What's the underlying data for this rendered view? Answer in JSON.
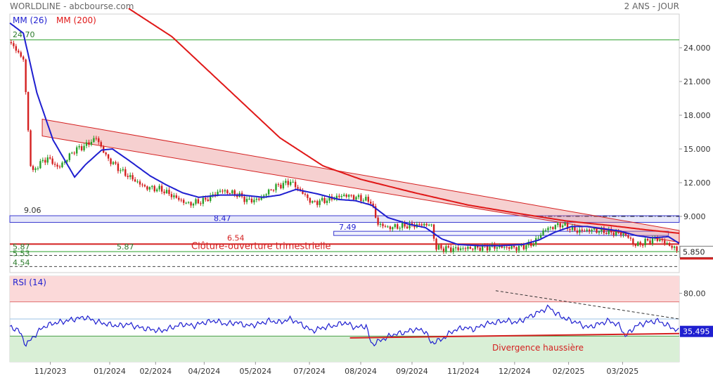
{
  "header": {
    "left": "WORLDLINE - abcbourse.com",
    "right": "2 ANS - JOUR"
  },
  "colors": {
    "mm26": "#1f1fd0",
    "mm200": "#e01818",
    "up": "#2aa02a",
    "down": "#d42020",
    "rsi": "#1f1fd0",
    "overbought_zone": "#fbd9d9",
    "oversold_zone": "#d9efd6",
    "price_badge": "#7a7a7a",
    "rsi_badge": "#1f1fd0"
  },
  "chart_data": [
    {
      "type": "line",
      "panel": "price",
      "legend": [
        {
          "name": "MM (26)"
        },
        {
          "name": "MM (200)"
        }
      ],
      "ylim": [
        4.0,
        27.0
      ],
      "yticks": [
        "24.000",
        "21.000",
        "18.000",
        "15.000",
        "12.000",
        "9.000",
        "6.000"
      ],
      "xticks": [
        "11/2023",
        "01/2024",
        "02/2024",
        "04/2024",
        "05/2024",
        "07/2024",
        "08/2024",
        "09/2024",
        "11/2024",
        "12/2024",
        "02/2025",
        "03/2025"
      ],
      "current_price_label": "5.850",
      "current_price": 5.85,
      "levels": [
        {
          "label": "24.70",
          "value": 24.7
        },
        {
          "label": "9.06",
          "value": 9.06
        },
        {
          "label": "8.47",
          "value": 8.47
        },
        {
          "label": "7.49",
          "value": 7.49
        },
        {
          "label": "6.54",
          "value": 6.54
        },
        {
          "label": "5.87",
          "value": 5.87
        },
        {
          "label": "5.87",
          "value": 5.87
        },
        {
          "label": "5.53",
          "value": 5.53
        },
        {
          "label": "4.54",
          "value": 4.54
        }
      ],
      "annotation": "Clôture-ouverture trimestrielle",
      "series": [
        {
          "name": "Cours",
          "points": [
            [
              0,
              24.5
            ],
            [
              5,
              23.0
            ],
            [
              8,
              12.6
            ],
            [
              10,
              13.5
            ],
            [
              14,
              14.2
            ],
            [
              18,
              13.3
            ],
            [
              24,
              14.9
            ],
            [
              28,
              15.3
            ],
            [
              32,
              16.0
            ],
            [
              36,
              14.2
            ],
            [
              42,
              12.9
            ],
            [
              50,
              11.6
            ],
            [
              56,
              11.4
            ],
            [
              62,
              10.6
            ],
            [
              66,
              10.1
            ],
            [
              72,
              10.4
            ],
            [
              78,
              11.3
            ],
            [
              84,
              11.0
            ],
            [
              88,
              10.4
            ],
            [
              92,
              10.5
            ],
            [
              98,
              11.6
            ],
            [
              104,
              12.1
            ],
            [
              108,
              11.2
            ],
            [
              112,
              10.2
            ],
            [
              118,
              10.5
            ],
            [
              124,
              10.9
            ],
            [
              130,
              10.6
            ],
            [
              134,
              10.3
            ],
            [
              136,
              8.4
            ],
            [
              140,
              8.0
            ],
            [
              148,
              8.2
            ],
            [
              156,
              8.3
            ],
            [
              158,
              6.2
            ],
            [
              164,
              6.1
            ],
            [
              172,
              6.2
            ],
            [
              180,
              6.3
            ],
            [
              188,
              6.2
            ],
            [
              194,
              6.6
            ],
            [
              198,
              7.8
            ],
            [
              204,
              8.3
            ],
            [
              210,
              7.7
            ],
            [
              216,
              7.8
            ],
            [
              222,
              7.6
            ],
            [
              228,
              7.4
            ],
            [
              232,
              6.4
            ],
            [
              236,
              6.8
            ],
            [
              240,
              7.0
            ],
            [
              244,
              6.5
            ],
            [
              248,
              5.85
            ]
          ]
        },
        {
          "name": "MM (26)",
          "points": [
            [
              0,
              26.2
            ],
            [
              5,
              25.3
            ],
            [
              10,
              20.0
            ],
            [
              16,
              15.8
            ],
            [
              24,
              12.5
            ],
            [
              28,
              13.6
            ],
            [
              34,
              14.9
            ],
            [
              38,
              15.0
            ],
            [
              44,
              14.0
            ],
            [
              52,
              12.6
            ],
            [
              58,
              11.8
            ],
            [
              64,
              11.1
            ],
            [
              70,
              10.7
            ],
            [
              78,
              10.9
            ],
            [
              86,
              10.9
            ],
            [
              94,
              10.7
            ],
            [
              100,
              10.9
            ],
            [
              106,
              11.4
            ],
            [
              114,
              11.0
            ],
            [
              122,
              10.5
            ],
            [
              128,
              10.4
            ],
            [
              134,
              10.0
            ],
            [
              140,
              8.9
            ],
            [
              148,
              8.3
            ],
            [
              154,
              8.0
            ],
            [
              160,
              7.0
            ],
            [
              166,
              6.5
            ],
            [
              174,
              6.4
            ],
            [
              182,
              6.4
            ],
            [
              190,
              6.5
            ],
            [
              196,
              6.9
            ],
            [
              202,
              7.6
            ],
            [
              208,
              8.1
            ],
            [
              214,
              8.1
            ],
            [
              220,
              7.9
            ],
            [
              226,
              7.7
            ],
            [
              232,
              7.3
            ],
            [
              238,
              7.1
            ],
            [
              244,
              7.2
            ],
            [
              248,
              6.6
            ]
          ]
        },
        {
          "name": "MM (200)",
          "points": [
            [
              44,
              27.5
            ],
            [
              60,
              25.0
            ],
            [
              80,
              20.5
            ],
            [
              100,
              16.0
            ],
            [
              116,
              13.5
            ],
            [
              130,
              12.3
            ],
            [
              150,
              11.1
            ],
            [
              170,
              10.0
            ],
            [
              190,
              9.2
            ],
            [
              206,
              8.6
            ],
            [
              222,
              8.2
            ],
            [
              236,
              7.8
            ],
            [
              248,
              7.5
            ]
          ]
        }
      ]
    },
    {
      "type": "line",
      "panel": "rsi",
      "legend": [
        {
          "name": "RSI (14)"
        }
      ],
      "ylim": [
        0,
        100
      ],
      "yticks": [
        "80.00"
      ],
      "zones": [
        {
          "from": 70,
          "to": 100
        },
        {
          "from": 0,
          "to": 30
        }
      ],
      "current_value_label": "35.495",
      "current_value": 35.495,
      "annotation": "Divergence haussière",
      "series": [
        {
          "name": "RSI (14)",
          "points": [
            [
              0,
              40
            ],
            [
              3,
              38
            ],
            [
              6,
              20
            ],
            [
              9,
              30
            ],
            [
              12,
              40
            ],
            [
              16,
              45
            ],
            [
              20,
              47
            ],
            [
              24,
              50
            ],
            [
              28,
              52
            ],
            [
              32,
              47
            ],
            [
              36,
              44
            ],
            [
              40,
              42
            ],
            [
              44,
              44
            ],
            [
              48,
              40
            ],
            [
              52,
              38
            ],
            [
              56,
              36
            ],
            [
              60,
              40
            ],
            [
              64,
              44
            ],
            [
              68,
              42
            ],
            [
              72,
              46
            ],
            [
              76,
              48
            ],
            [
              80,
              44
            ],
            [
              84,
              46
            ],
            [
              88,
              42
            ],
            [
              92,
              44
            ],
            [
              96,
              48
            ],
            [
              100,
              46
            ],
            [
              104,
              50
            ],
            [
              108,
              44
            ],
            [
              112,
              36
            ],
            [
              116,
              40
            ],
            [
              120,
              42
            ],
            [
              124,
              46
            ],
            [
              128,
              40
            ],
            [
              132,
              42
            ],
            [
              134,
              20
            ],
            [
              138,
              26
            ],
            [
              142,
              32
            ],
            [
              146,
              34
            ],
            [
              150,
              38
            ],
            [
              154,
              36
            ],
            [
              156,
              22
            ],
            [
              160,
              26
            ],
            [
              164,
              36
            ],
            [
              168,
              40
            ],
            [
              172,
              38
            ],
            [
              176,
              44
            ],
            [
              180,
              46
            ],
            [
              184,
              48
            ],
            [
              188,
              46
            ],
            [
              192,
              52
            ],
            [
              196,
              58
            ],
            [
              200,
              64
            ],
            [
              202,
              57
            ],
            [
              206,
              50
            ],
            [
              210,
              46
            ],
            [
              214,
              40
            ],
            [
              218,
              44
            ],
            [
              222,
              48
            ],
            [
              226,
              42
            ],
            [
              228,
              30
            ],
            [
              232,
              42
            ],
            [
              236,
              46
            ],
            [
              240,
              48
            ],
            [
              244,
              42
            ],
            [
              248,
              35.5
            ]
          ]
        }
      ]
    }
  ]
}
